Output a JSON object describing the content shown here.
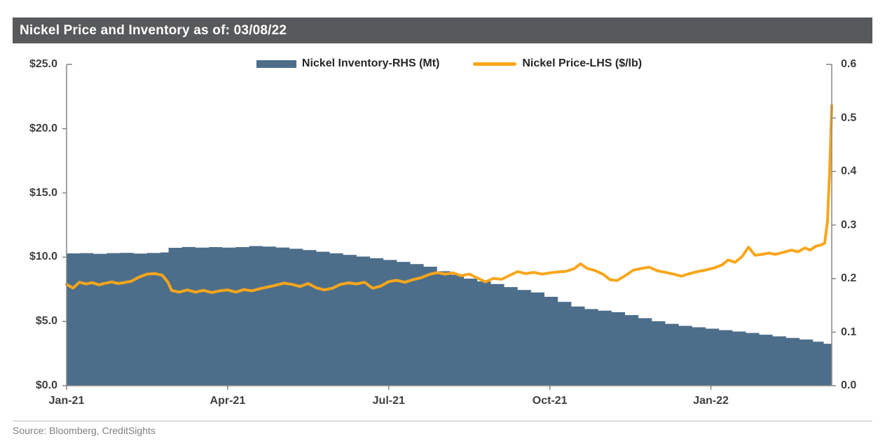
{
  "header": {
    "title": "Nickel Price and Inventory as of: 03/08/22",
    "bg_color": "#58595B"
  },
  "legend": {
    "inventory_label": "Nickel Inventory-RHS (Mt)",
    "price_label": "Nickel Price-LHS ($/lb)"
  },
  "source": {
    "text": "Source: Bloomberg, CreditSights"
  },
  "colors": {
    "inventory_area": "#4D6E8A",
    "price_line": "#F9A61B",
    "axis_line": "#8C8C8C",
    "tick_label": "#404040",
    "title_bg": "#58595B",
    "title_text": "#FFFFFF"
  },
  "chart_data": {
    "type": "area",
    "subtype": "dual-axis area + line",
    "title": "Nickel Price and Inventory as of: 03/08/22",
    "grid": false,
    "legend_position": "top-center",
    "x_axis": {
      "unit": "months since Jan-2021",
      "domain_months": [
        0,
        14.25
      ],
      "ticks": [
        {
          "label": "Jan-21",
          "month": 0
        },
        {
          "label": "Apr-21",
          "month": 3
        },
        {
          "label": "Jul-21",
          "month": 6
        },
        {
          "label": "Oct-21",
          "month": 9
        },
        {
          "label": "Jan-22",
          "month": 12
        }
      ]
    },
    "left_axis": {
      "title": "Nickel Price ($/lb)",
      "range": [
        0,
        25
      ],
      "tick_values": [
        25,
        20,
        15,
        10,
        5,
        0
      ],
      "tick_labels": [
        "$25.0",
        "$20.0",
        "$15.0",
        "$10.0",
        "$5.0",
        "$0.0"
      ]
    },
    "right_axis": {
      "title": "Nickel Inventory (Mt)",
      "range": [
        0,
        0.6
      ],
      "tick_values": [
        0.6,
        0.5,
        0.4,
        0.3,
        0.2,
        0.1,
        0.0
      ],
      "tick_labels": [
        "0.6",
        "0.5",
        "0.4",
        "0.3",
        "0.2",
        "0.1",
        "0.0"
      ]
    },
    "series": [
      {
        "name": "Nickel Inventory-RHS (Mt)",
        "type": "area",
        "axis": "right",
        "color": "#4D6E8A",
        "points": [
          [
            0.0,
            0.247
          ],
          [
            0.25,
            0.2475
          ],
          [
            0.5,
            0.2462
          ],
          [
            0.75,
            0.2475
          ],
          [
            1.0,
            0.248
          ],
          [
            1.25,
            0.2468
          ],
          [
            1.5,
            0.2478
          ],
          [
            1.75,
            0.2488
          ],
          [
            1.9,
            0.2575
          ],
          [
            2.15,
            0.259
          ],
          [
            2.4,
            0.2578
          ],
          [
            2.65,
            0.2588
          ],
          [
            2.9,
            0.2578
          ],
          [
            3.15,
            0.2588
          ],
          [
            3.4,
            0.2608
          ],
          [
            3.65,
            0.2598
          ],
          [
            3.9,
            0.258
          ],
          [
            4.15,
            0.2558
          ],
          [
            4.4,
            0.2532
          ],
          [
            4.65,
            0.2502
          ],
          [
            4.9,
            0.2472
          ],
          [
            5.15,
            0.2442
          ],
          [
            5.4,
            0.2412
          ],
          [
            5.65,
            0.238
          ],
          [
            5.9,
            0.2348
          ],
          [
            6.15,
            0.2312
          ],
          [
            6.4,
            0.2272
          ],
          [
            6.65,
            0.2222
          ],
          [
            6.9,
            0.2138
          ],
          [
            7.15,
            0.2072
          ],
          [
            7.4,
            0.2
          ],
          [
            7.65,
            0.1948
          ],
          [
            7.9,
            0.1898
          ],
          [
            8.15,
            0.1842
          ],
          [
            8.4,
            0.1788
          ],
          [
            8.65,
            0.1742
          ],
          [
            8.9,
            0.166
          ],
          [
            9.15,
            0.1565
          ],
          [
            9.4,
            0.1478
          ],
          [
            9.65,
            0.1432
          ],
          [
            9.9,
            0.1402
          ],
          [
            10.15,
            0.1372
          ],
          [
            10.4,
            0.1318
          ],
          [
            10.65,
            0.1262
          ],
          [
            10.9,
            0.1205
          ],
          [
            11.15,
            0.1155
          ],
          [
            11.4,
            0.1118
          ],
          [
            11.65,
            0.1092
          ],
          [
            11.9,
            0.1065
          ],
          [
            12.15,
            0.1038
          ],
          [
            12.4,
            0.1012
          ],
          [
            12.65,
            0.0985
          ],
          [
            12.9,
            0.0952
          ],
          [
            13.15,
            0.0922
          ],
          [
            13.4,
            0.0892
          ],
          [
            13.65,
            0.0862
          ],
          [
            13.9,
            0.0822
          ],
          [
            14.1,
            0.0782
          ],
          [
            14.25,
            0.0745
          ]
        ]
      },
      {
        "name": "Nickel Price-LHS ($/lb)",
        "type": "line",
        "axis": "left",
        "color": "#F9A61B",
        "points": [
          [
            0.0,
            7.88
          ],
          [
            0.12,
            7.6
          ],
          [
            0.24,
            8.05
          ],
          [
            0.36,
            7.92
          ],
          [
            0.48,
            8.02
          ],
          [
            0.6,
            7.85
          ],
          [
            0.72,
            7.97
          ],
          [
            0.84,
            8.07
          ],
          [
            0.96,
            7.95
          ],
          [
            1.08,
            8.03
          ],
          [
            1.2,
            8.12
          ],
          [
            1.35,
            8.45
          ],
          [
            1.5,
            8.68
          ],
          [
            1.65,
            8.72
          ],
          [
            1.78,
            8.6
          ],
          [
            1.88,
            8.1
          ],
          [
            1.96,
            7.4
          ],
          [
            2.1,
            7.28
          ],
          [
            2.25,
            7.45
          ],
          [
            2.4,
            7.28
          ],
          [
            2.55,
            7.42
          ],
          [
            2.7,
            7.25
          ],
          [
            2.85,
            7.38
          ],
          [
            3.0,
            7.45
          ],
          [
            3.15,
            7.28
          ],
          [
            3.3,
            7.48
          ],
          [
            3.45,
            7.38
          ],
          [
            3.6,
            7.55
          ],
          [
            3.75,
            7.68
          ],
          [
            3.9,
            7.82
          ],
          [
            4.05,
            7.98
          ],
          [
            4.2,
            7.88
          ],
          [
            4.35,
            7.72
          ],
          [
            4.5,
            7.95
          ],
          [
            4.65,
            7.62
          ],
          [
            4.8,
            7.45
          ],
          [
            4.95,
            7.58
          ],
          [
            5.1,
            7.88
          ],
          [
            5.25,
            8.0
          ],
          [
            5.4,
            7.92
          ],
          [
            5.55,
            8.05
          ],
          [
            5.7,
            7.58
          ],
          [
            5.85,
            7.75
          ],
          [
            6.0,
            8.1
          ],
          [
            6.15,
            8.2
          ],
          [
            6.3,
            8.05
          ],
          [
            6.45,
            8.25
          ],
          [
            6.6,
            8.4
          ],
          [
            6.75,
            8.65
          ],
          [
            6.9,
            8.8
          ],
          [
            7.05,
            8.68
          ],
          [
            7.2,
            8.78
          ],
          [
            7.35,
            8.55
          ],
          [
            7.5,
            8.68
          ],
          [
            7.65,
            8.38
          ],
          [
            7.8,
            8.08
          ],
          [
            7.95,
            8.35
          ],
          [
            8.1,
            8.28
          ],
          [
            8.25,
            8.58
          ],
          [
            8.4,
            8.88
          ],
          [
            8.55,
            8.72
          ],
          [
            8.7,
            8.82
          ],
          [
            8.85,
            8.68
          ],
          [
            9.0,
            8.78
          ],
          [
            9.15,
            8.85
          ],
          [
            9.3,
            8.9
          ],
          [
            9.45,
            9.1
          ],
          [
            9.57,
            9.48
          ],
          [
            9.7,
            9.12
          ],
          [
            9.85,
            8.95
          ],
          [
            10.0,
            8.65
          ],
          [
            10.12,
            8.25
          ],
          [
            10.25,
            8.18
          ],
          [
            10.4,
            8.55
          ],
          [
            10.55,
            8.98
          ],
          [
            10.7,
            9.12
          ],
          [
            10.85,
            9.22
          ],
          [
            11.0,
            8.95
          ],
          [
            11.15,
            8.82
          ],
          [
            11.3,
            8.68
          ],
          [
            11.45,
            8.52
          ],
          [
            11.6,
            8.72
          ],
          [
            11.75,
            8.88
          ],
          [
            11.9,
            9.0
          ],
          [
            12.05,
            9.15
          ],
          [
            12.2,
            9.38
          ],
          [
            12.32,
            9.78
          ],
          [
            12.45,
            9.6
          ],
          [
            12.58,
            10.05
          ],
          [
            12.7,
            10.78
          ],
          [
            12.82,
            10.15
          ],
          [
            12.95,
            10.22
          ],
          [
            13.08,
            10.32
          ],
          [
            13.2,
            10.22
          ],
          [
            13.35,
            10.38
          ],
          [
            13.5,
            10.55
          ],
          [
            13.62,
            10.42
          ],
          [
            13.75,
            10.72
          ],
          [
            13.85,
            10.55
          ],
          [
            13.95,
            10.85
          ],
          [
            14.05,
            10.95
          ],
          [
            14.12,
            11.1
          ],
          [
            14.17,
            12.8
          ],
          [
            14.21,
            16.5
          ],
          [
            14.25,
            21.8
          ]
        ]
      }
    ]
  }
}
